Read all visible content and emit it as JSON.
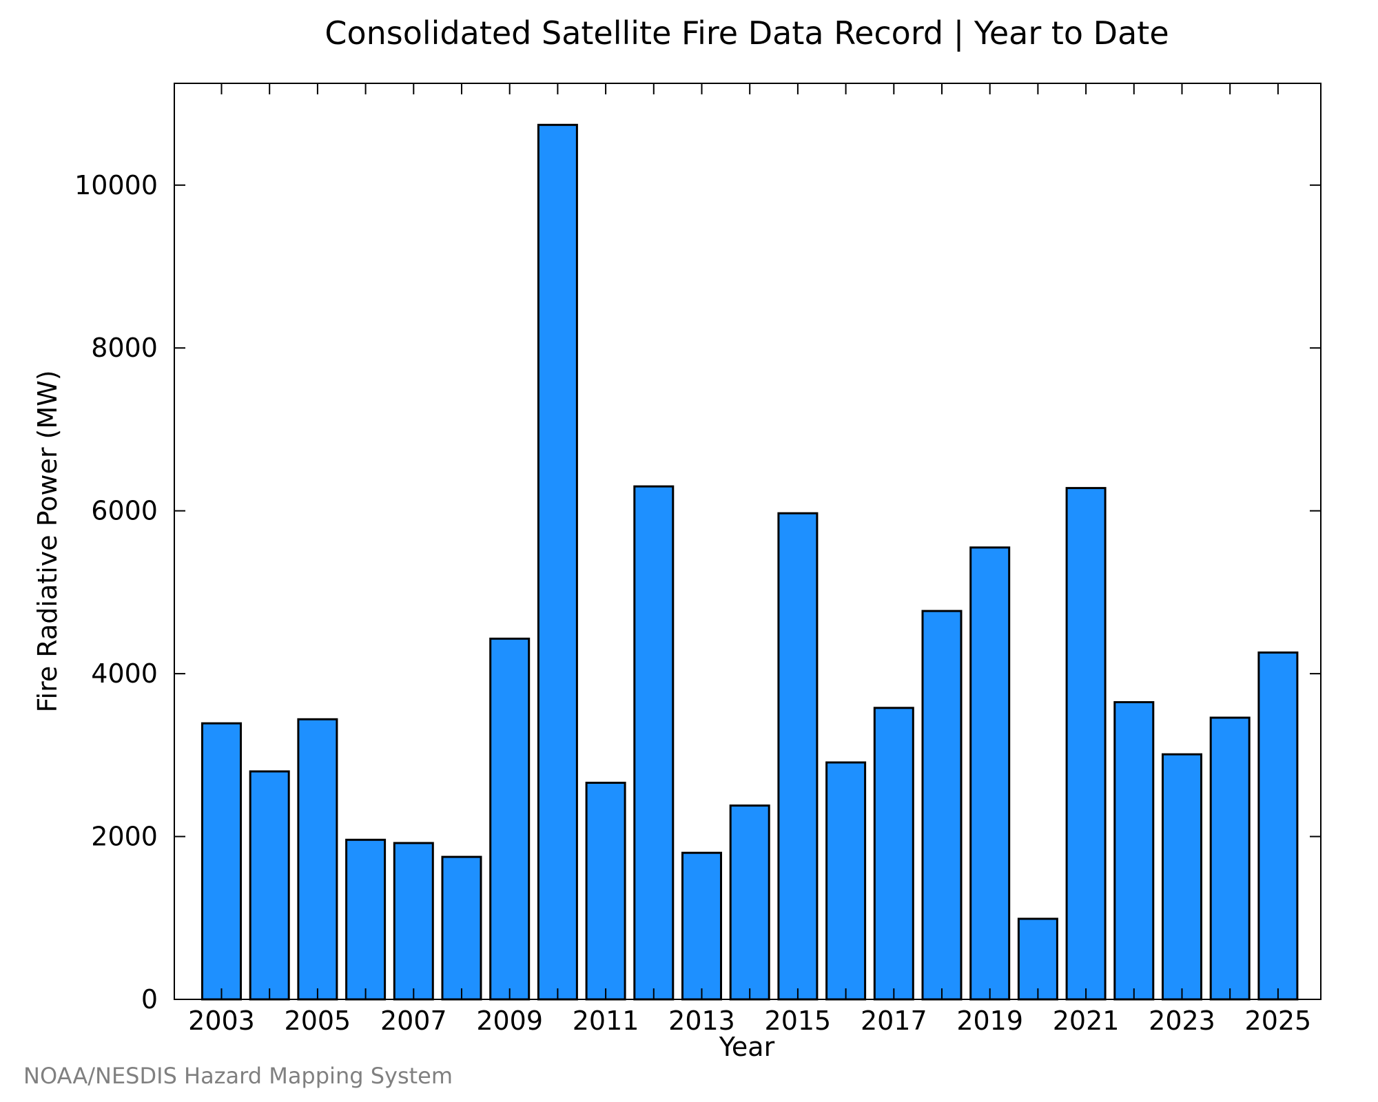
{
  "chart_data": {
    "type": "bar",
    "title": "Consolidated Satellite Fire Data Record | Year to Date",
    "xlabel": "Year",
    "ylabel": "Fire Radiative Power (MW)",
    "categories": [
      "2003",
      "2004",
      "2005",
      "2006",
      "2007",
      "2008",
      "2009",
      "2010",
      "2011",
      "2012",
      "2013",
      "2014",
      "2015",
      "2016",
      "2017",
      "2018",
      "2019",
      "2020",
      "2021",
      "2022",
      "2023",
      "2024",
      "2025"
    ],
    "values": [
      3390,
      2800,
      3440,
      1960,
      1920,
      1750,
      4430,
      10740,
      2660,
      6300,
      1800,
      2380,
      5970,
      2910,
      3580,
      4770,
      5550,
      990,
      6280,
      3650,
      3010,
      3460,
      4260
    ],
    "x_tick_labels": [
      "2003",
      "2005",
      "2007",
      "2009",
      "2011",
      "2013",
      "2015",
      "2017",
      "2019",
      "2021",
      "2023",
      "2025"
    ],
    "y_ticks": [
      0,
      2000,
      4000,
      6000,
      8000,
      10000
    ],
    "ylim": [
      0,
      11250
    ],
    "grid": false,
    "legend": "none",
    "bar_color": "#1e90ff",
    "bar_edge_color": "#000000"
  },
  "credit": "NOAA/NESDIS Hazard Mapping System",
  "colors": {
    "credit_text": "#808080",
    "axis": "#000000",
    "background": "#ffffff"
  }
}
